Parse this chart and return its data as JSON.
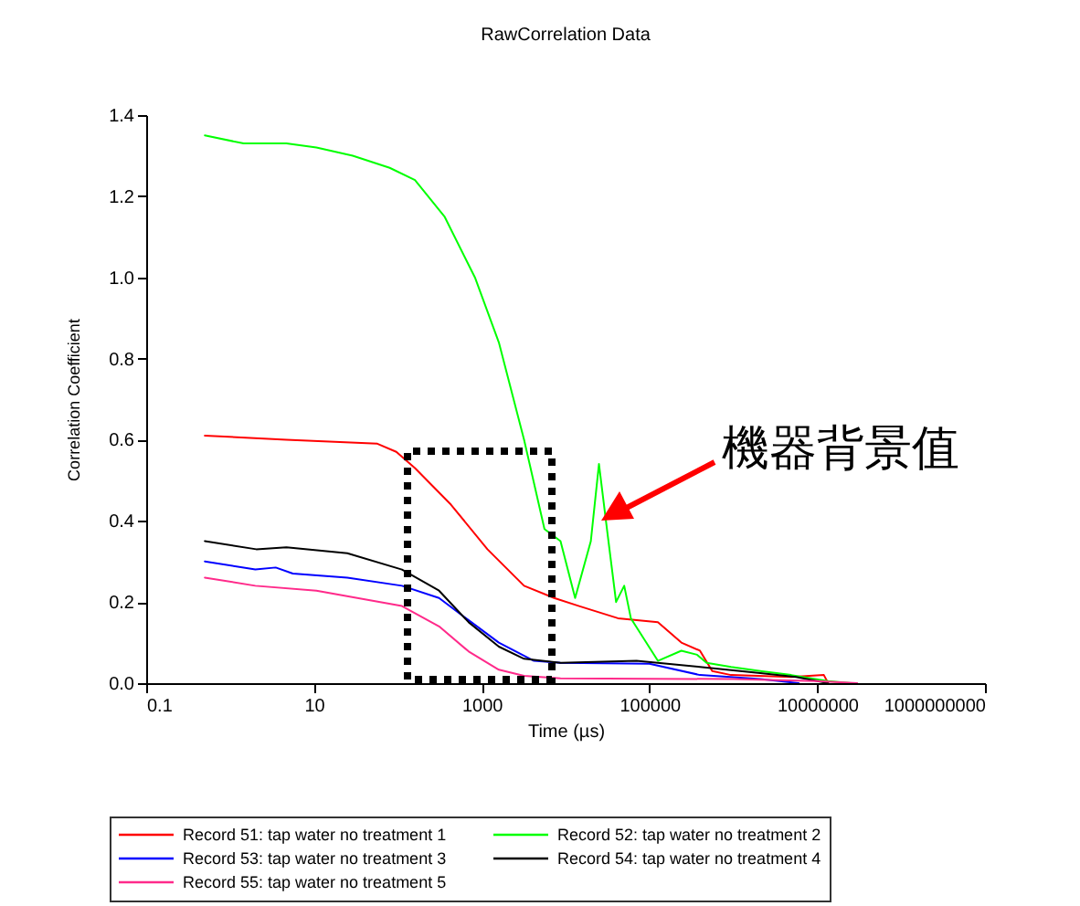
{
  "chart_data": {
    "type": "line",
    "title": "RawCorrelation Data",
    "xlabel": "Time (µs)",
    "ylabel": "Correlation Coefficient",
    "log": "x",
    "xlim": [
      0.1,
      1000000000
    ],
    "xticks": [
      0.1,
      10,
      1000,
      100000,
      10000000,
      1000000000
    ],
    "ylim": [
      0,
      1.4
    ],
    "yticks": [
      {
        "value": 0,
        "label": "0.0"
      },
      0.2,
      0.4,
      0.6,
      0.8,
      {
        "value": 1,
        "label": "1.0"
      },
      1.2,
      1.4
    ],
    "legend": "bottom",
    "grid": false,
    "line_style": "solid",
    "marker": "none",
    "annotations": [
      "機器背景值"
    ],
    "series": [
      {
        "name": "Record 51: tap water no treatment 1",
        "color": "#ff0000",
        "x": [
          0.5,
          4.7,
          57,
          96,
          160,
          430,
          1170,
          3200,
          7300,
          14500,
          42000,
          126000,
          240000,
          400000,
          560000,
          940000,
          4900000,
          12000000,
          13500000
        ],
        "values": [
          0.61,
          0.6,
          0.59,
          0.57,
          0.53,
          0.44,
          0.33,
          0.24,
          0.21,
          0.19,
          0.16,
          0.15,
          0.1,
          0.08,
          0.03,
          0.02,
          0.015,
          0.02,
          0
        ]
      },
      {
        "name": "Record 52: tap water no treatment 2",
        "color": "#00ff00",
        "x": [
          0.5,
          1.45,
          4.7,
          10.7,
          29,
          80,
          160,
          360,
          830,
          1600,
          3200,
          5600,
          8700,
          13000,
          20000,
          25000,
          32000,
          40000,
          50000,
          60000,
          126000,
          240000,
          370000,
          480000,
          940000,
          2100000,
          4900000,
          13500000,
          25000000
        ],
        "values": [
          1.35,
          1.33,
          1.33,
          1.32,
          1.3,
          1.27,
          1.24,
          1.15,
          1.0,
          0.84,
          0.6,
          0.38,
          0.35,
          0.21,
          0.35,
          0.54,
          0.36,
          0.2,
          0.24,
          0.16,
          0.055,
          0.08,
          0.07,
          0.05,
          0.04,
          0.03,
          0.02,
          0.005,
          0
        ]
      },
      {
        "name": "Record 53: tap water no treatment 3",
        "color": "#0000ff",
        "x": [
          0.5,
          2,
          3.5,
          5.6,
          25,
          112,
          310,
          700,
          1600,
          4200,
          8700,
          100000,
          400000,
          2100000,
          6000000
        ],
        "values": [
          0.3,
          0.28,
          0.285,
          0.27,
          0.26,
          0.24,
          0.21,
          0.155,
          0.1,
          0.055,
          0.05,
          0.048,
          0.02,
          0.01,
          0
        ]
      },
      {
        "name": "Record 54: tap water no treatment 4",
        "color": "#000000",
        "x": [
          0.5,
          2.05,
          4.7,
          25,
          112,
          310,
          700,
          1600,
          3200,
          8700,
          70000,
          400000,
          2100000,
          5600000,
          13500000
        ],
        "values": [
          0.35,
          0.33,
          0.335,
          0.32,
          0.28,
          0.228,
          0.15,
          0.09,
          0.06,
          0.05,
          0.055,
          0.04,
          0.025,
          0.015,
          0
        ]
      },
      {
        "name": "Record 55: tap water no treatment 5",
        "color": "#ff2a8a",
        "x": [
          0.5,
          2,
          10.7,
          112,
          310,
          700,
          1600,
          3200,
          8700,
          1000000,
          10000000,
          30000000
        ],
        "values": [
          0.26,
          0.24,
          0.228,
          0.19,
          0.14,
          0.078,
          0.033,
          0.018,
          0.012,
          0.01,
          0.005,
          0
        ]
      }
    ]
  }
}
